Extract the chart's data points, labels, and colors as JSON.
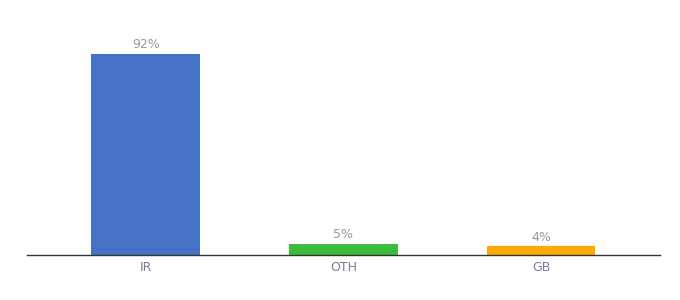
{
  "categories": [
    "IR",
    "OTH",
    "GB"
  ],
  "values": [
    92,
    5,
    4
  ],
  "bar_colors": [
    "#4472c4",
    "#3dbb3d",
    "#ffaa00"
  ],
  "labels": [
    "92%",
    "5%",
    "4%"
  ],
  "ylim": [
    0,
    100
  ],
  "background_color": "#ffffff",
  "label_color": "#999999",
  "bar_width": 0.55,
  "label_fontsize": 9,
  "tick_fontsize": 9,
  "tick_color": "#7b7b9b"
}
